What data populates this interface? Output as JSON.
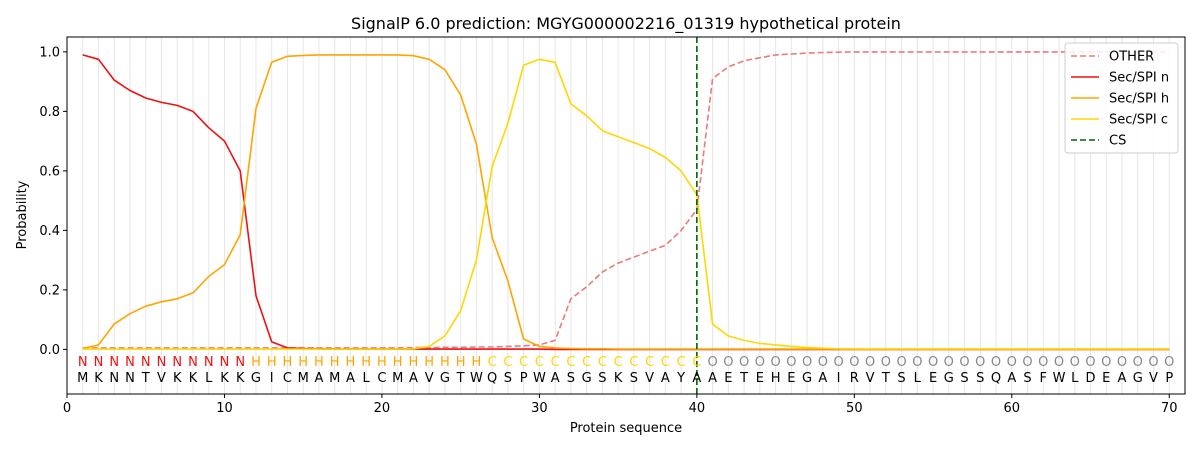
{
  "chart_data": {
    "type": "line",
    "title": "SignalP 6.0 prediction: MGYG000002216_01319 hypothetical protein",
    "xlabel": "Protein sequence",
    "ylabel": "Probability",
    "xlim": [
      0,
      71
    ],
    "ylim": [
      -0.15,
      1.05
    ],
    "xticks": [
      0,
      10,
      20,
      30,
      40,
      50,
      60,
      70
    ],
    "yticks": [
      0.0,
      0.2,
      0.4,
      0.6,
      0.8,
      1.0
    ],
    "ytick_labels": [
      "0.0",
      "0.2",
      "0.4",
      "0.6",
      "0.8",
      "1.0"
    ],
    "x": [
      1,
      2,
      3,
      4,
      5,
      6,
      7,
      8,
      9,
      10,
      11,
      12,
      13,
      14,
      15,
      16,
      17,
      18,
      19,
      20,
      21,
      22,
      23,
      24,
      25,
      26,
      27,
      28,
      29,
      30,
      31,
      32,
      33,
      34,
      35,
      36,
      37,
      38,
      39,
      40,
      41,
      42,
      43,
      44,
      45,
      46,
      47,
      48,
      49,
      50,
      51,
      52,
      53,
      54,
      55,
      56,
      57,
      58,
      59,
      60,
      61,
      62,
      63,
      64,
      65,
      66,
      67,
      68,
      69,
      70
    ],
    "series": [
      {
        "name": "OTHER",
        "color": "#e87b7b",
        "dash": true,
        "values": [
          0.005,
          0.005,
          0.005,
          0.005,
          0.005,
          0.005,
          0.005,
          0.005,
          0.005,
          0.005,
          0.005,
          0.005,
          0.005,
          0.005,
          0.005,
          0.005,
          0.005,
          0.005,
          0.005,
          0.005,
          0.005,
          0.006,
          0.006,
          0.007,
          0.007,
          0.008,
          0.008,
          0.01,
          0.012,
          0.015,
          0.03,
          0.17,
          0.21,
          0.26,
          0.29,
          0.31,
          0.33,
          0.35,
          0.4,
          0.47,
          0.91,
          0.95,
          0.97,
          0.98,
          0.99,
          0.993,
          0.996,
          0.998,
          0.999,
          1.0,
          1.0,
          1.0,
          1.0,
          1.0,
          1.0,
          1.0,
          1.0,
          1.0,
          1.0,
          1.0,
          1.0,
          1.0,
          1.0,
          1.0,
          1.0,
          1.0,
          1.0,
          1.0,
          1.0,
          1.0
        ]
      },
      {
        "name": "Sec/SPI n",
        "color": "#ee1111",
        "dash": false,
        "values": [
          0.99,
          0.975,
          0.905,
          0.87,
          0.845,
          0.83,
          0.82,
          0.8,
          0.745,
          0.7,
          0.6,
          0.18,
          0.025,
          0.005,
          0.003,
          0.002,
          0.001,
          0.001,
          0.001,
          0.001,
          0.001,
          0.001,
          0.001,
          0.001,
          0.001,
          0.001,
          0.001,
          0.001,
          0.001,
          0.001,
          0,
          0,
          0,
          0,
          0,
          0,
          0,
          0,
          0,
          0,
          0,
          0,
          0,
          0,
          0,
          0,
          0,
          0,
          0,
          0,
          0,
          0,
          0,
          0,
          0,
          0,
          0,
          0,
          0,
          0,
          0,
          0,
          0,
          0,
          0,
          0,
          0,
          0,
          0,
          0
        ]
      },
      {
        "name": "Sec/SPI h",
        "color": "#ffa500",
        "dash": false,
        "values": [
          0.003,
          0.015,
          0.085,
          0.12,
          0.145,
          0.16,
          0.17,
          0.19,
          0.245,
          0.285,
          0.385,
          0.81,
          0.965,
          0.985,
          0.988,
          0.99,
          0.99,
          0.99,
          0.99,
          0.99,
          0.99,
          0.987,
          0.975,
          0.94,
          0.855,
          0.69,
          0.375,
          0.23,
          0.035,
          0.01,
          0.005,
          0.003,
          0.002,
          0.002,
          0.001,
          0.001,
          0.001,
          0.001,
          0.001,
          0.001,
          0.001,
          0.001,
          0.001,
          0.001,
          0.001,
          0.001,
          0.001,
          0.001,
          0.001,
          0.001,
          0.001,
          0.001,
          0.001,
          0.001,
          0.001,
          0.001,
          0.001,
          0.001,
          0.001,
          0.001,
          0.001,
          0.001,
          0.001,
          0.001,
          0.001,
          0.001,
          0.001,
          0.001,
          0.001,
          0.001
        ]
      },
      {
        "name": "Sec/SPI c",
        "color": "#ffd700",
        "dash": false,
        "values": [
          0.001,
          0.001,
          0.001,
          0.001,
          0.001,
          0.001,
          0.001,
          0.001,
          0.001,
          0.001,
          0.001,
          0.001,
          0.001,
          0.001,
          0.001,
          0.001,
          0.001,
          0.001,
          0.001,
          0.001,
          0.001,
          0.002,
          0.01,
          0.045,
          0.13,
          0.3,
          0.615,
          0.76,
          0.955,
          0.975,
          0.965,
          0.825,
          0.785,
          0.735,
          0.715,
          0.695,
          0.675,
          0.645,
          0.6,
          0.52,
          0.085,
          0.045,
          0.03,
          0.02,
          0.015,
          0.01,
          0.006,
          0.004,
          0.002,
          0.001,
          0.001,
          0.001,
          0.001,
          0.001,
          0.001,
          0.001,
          0.001,
          0.001,
          0.001,
          0.001,
          0.001,
          0.001,
          0.001,
          0.001,
          0.001,
          0.001,
          0.001,
          0.001,
          0.001,
          0.001
        ]
      }
    ],
    "cs": {
      "name": "CS",
      "x": 40,
      "color": "#006400"
    },
    "legend_position": "top-right",
    "sequence": [
      "M",
      "K",
      "N",
      "N",
      "T",
      "V",
      "K",
      "K",
      "L",
      "K",
      "K",
      "G",
      "I",
      "C",
      "M",
      "A",
      "M",
      "A",
      "L",
      "C",
      "M",
      "A",
      "V",
      "G",
      "T",
      "W",
      "Q",
      "S",
      "P",
      "W",
      "A",
      "S",
      "G",
      "S",
      "K",
      "S",
      "V",
      "A",
      "Y",
      "A",
      "A",
      "E",
      "T",
      "E",
      "H",
      "E",
      "G",
      "A",
      "I",
      "R",
      "V",
      "T",
      "S",
      "L",
      "E",
      "G",
      "S",
      "S",
      "Q",
      "A",
      "S",
      "F",
      "W",
      "L",
      "D",
      "E",
      "A",
      "G",
      "V",
      "P"
    ],
    "labels": [
      "N",
      "N",
      "N",
      "N",
      "N",
      "N",
      "N",
      "N",
      "N",
      "N",
      "N",
      "H",
      "H",
      "H",
      "H",
      "H",
      "H",
      "H",
      "H",
      "H",
      "H",
      "H",
      "H",
      "H",
      "H",
      "H",
      "C",
      "C",
      "C",
      "C",
      "C",
      "C",
      "C",
      "C",
      "C",
      "C",
      "C",
      "C",
      "C",
      "C",
      "O",
      "O",
      "O",
      "O",
      "O",
      "O",
      "O",
      "O",
      "O",
      "O",
      "O",
      "O",
      "O",
      "O",
      "O",
      "O",
      "O",
      "O",
      "O",
      "O",
      "O",
      "O",
      "O",
      "O",
      "O",
      "O",
      "O",
      "O",
      "O",
      "O"
    ],
    "label_colors": {
      "N": "#ee1111",
      "H": "#ffa500",
      "C": "#ffd700",
      "O": "#888888"
    },
    "grid": "vertical"
  }
}
